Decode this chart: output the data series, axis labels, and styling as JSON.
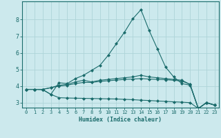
{
  "xlabel": "Humidex (Indice chaleur)",
  "bg_color": "#cce9ed",
  "grid_color": "#aed4d8",
  "line_color": "#1a6b6b",
  "xlim": [
    -0.5,
    23.5
  ],
  "ylim": [
    2.7,
    9.1
  ],
  "xticks": [
    0,
    1,
    2,
    3,
    4,
    5,
    6,
    7,
    8,
    9,
    10,
    11,
    12,
    13,
    14,
    15,
    16,
    17,
    18,
    19,
    20,
    21,
    22,
    23
  ],
  "yticks": [
    3,
    4,
    5,
    6,
    7,
    8
  ],
  "series": [
    [
      3.8,
      3.8,
      3.8,
      3.5,
      4.2,
      4.15,
      4.45,
      4.65,
      4.95,
      5.25,
      5.85,
      6.55,
      7.25,
      8.05,
      8.6,
      7.35,
      6.25,
      5.15,
      4.55,
      4.15,
      4.05,
      2.65,
      3.0,
      2.85
    ],
    [
      3.8,
      3.8,
      3.8,
      3.9,
      4.05,
      4.1,
      4.25,
      4.35,
      4.25,
      4.35,
      4.4,
      4.45,
      4.5,
      4.55,
      4.65,
      4.55,
      4.5,
      4.45,
      4.4,
      4.35,
      4.1,
      2.65,
      3.0,
      2.85
    ],
    [
      3.8,
      3.8,
      3.78,
      3.5,
      3.3,
      3.28,
      3.27,
      3.26,
      3.25,
      3.24,
      3.23,
      3.22,
      3.2,
      3.18,
      3.15,
      3.13,
      3.1,
      3.08,
      3.05,
      3.03,
      3.0,
      2.65,
      3.0,
      2.85
    ],
    [
      3.8,
      3.8,
      3.8,
      3.9,
      4.0,
      4.05,
      4.15,
      4.22,
      4.22,
      4.28,
      4.32,
      4.36,
      4.4,
      4.42,
      4.45,
      4.42,
      4.4,
      4.38,
      4.35,
      4.3,
      4.1,
      2.65,
      3.0,
      2.85
    ]
  ]
}
